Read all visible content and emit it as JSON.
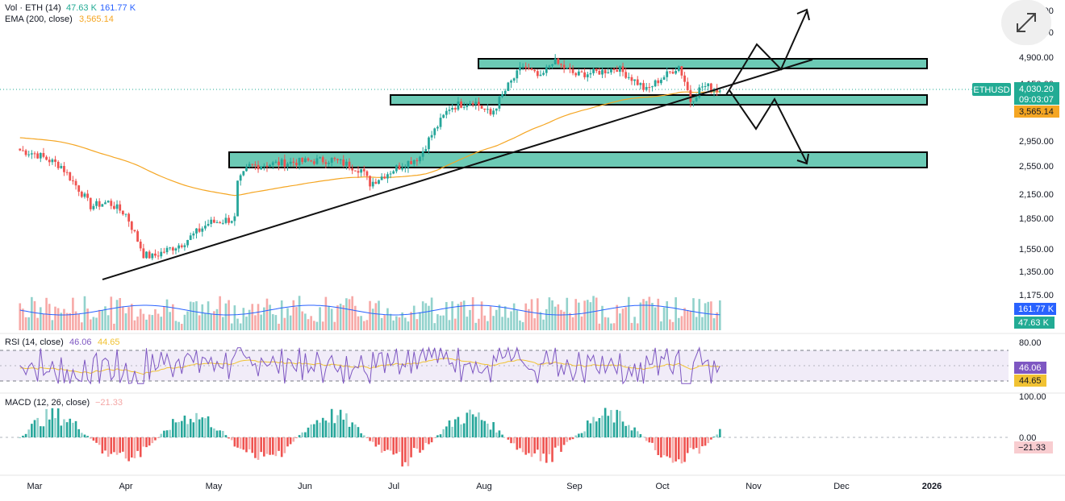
{
  "legend": {
    "vol": {
      "label": "Vol · ETH (14)",
      "v1": "47.63 K",
      "v2": "161.77 K"
    },
    "ema": {
      "label": "EMA (200, close)",
      "value": "3,565.14"
    },
    "rsi": {
      "label": "RSI (14, close)",
      "v1": "46.06",
      "v2": "44.65"
    },
    "macd": {
      "label": "MACD (12, 26, close)",
      "value": "−21.33"
    }
  },
  "price_scale": {
    "ticks": [
      "5,700.00",
      "5,300.00",
      "4,900.00",
      "4,150.00",
      "2,950.00",
      "2,550.00",
      "2,150.00",
      "1,850.00",
      "1,550.00",
      "1,350.00",
      "1,175.00"
    ],
    "symbol_badge": "ETHUSD",
    "price_badge": "4,030.20",
    "countdown": "09:03:07",
    "ema_badge": "3,565.14",
    "vol_badge_ma": "161.77 K",
    "vol_badge_vol": "47.63 K"
  },
  "rsi_scale": {
    "top": "80.00",
    "badge1": "46.06",
    "badge2": "44.65"
  },
  "macd_scale": {
    "top": "100.00",
    "zero": "0.00",
    "badge": "−21.33"
  },
  "time_axis": [
    "Mar",
    "Apr",
    "May",
    "Jun",
    "Jul",
    "Aug",
    "Sep",
    "Oct",
    "Nov",
    "Dec",
    "2026"
  ],
  "colors": {
    "up": "#26a69a",
    "down": "#ef5350",
    "ema": "#f5a623",
    "zone_fill": "#6ccab5",
    "rsi": "#7e57c2",
    "rsi_ma": "#f1c232",
    "vol_ma": "#2962ff",
    "badge_green": "#22ab94"
  },
  "icons": {
    "expand": "expand-arrows-icon"
  },
  "chart_data": {
    "type": "candlestick",
    "symbol": "ETHUSD",
    "last_price": 4030.2,
    "ema200": 3565.14,
    "close_path": [
      [
        "2025-02-24",
        2800
      ],
      [
        "2025-03-01",
        2750
      ],
      [
        "2025-03-10",
        2550
      ],
      [
        "2025-03-20",
        2000
      ],
      [
        "2025-03-26",
        2050
      ],
      [
        "2025-04-01",
        1900
      ],
      [
        "2025-04-07",
        1500
      ],
      [
        "2025-04-10",
        1480
      ],
      [
        "2025-04-20",
        1600
      ],
      [
        "2025-04-29",
        1800
      ],
      [
        "2025-05-08",
        1850
      ],
      [
        "2025-05-09",
        2300
      ],
      [
        "2025-05-13",
        2550
      ],
      [
        "2025-05-25",
        2600
      ],
      [
        "2025-06-10",
        2650
      ],
      [
        "2025-06-20",
        2500
      ],
      [
        "2025-06-23",
        2300
      ],
      [
        "2025-07-01",
        2500
      ],
      [
        "2025-07-10",
        2700
      ],
      [
        "2025-07-20",
        3650
      ],
      [
        "2025-07-28",
        3800
      ],
      [
        "2025-08-03",
        3500
      ],
      [
        "2025-08-10",
        4200
      ],
      [
        "2025-08-14",
        4650
      ],
      [
        "2025-08-20",
        4300
      ],
      [
        "2025-08-24",
        4800
      ],
      [
        "2025-09-01",
        4400
      ],
      [
        "2025-09-10",
        4500
      ],
      [
        "2025-09-15",
        4600
      ],
      [
        "2025-09-25",
        4000
      ],
      [
        "2025-10-06",
        4650
      ],
      [
        "2025-10-10",
        3800
      ],
      [
        "2025-10-14",
        4100
      ],
      [
        "2025-10-20",
        4030
      ]
    ],
    "zones": [
      [
        4700,
        4900
      ],
      [
        3800,
        3950
      ],
      [
        2500,
        2700
      ]
    ],
    "rsi": {
      "last": 46.06,
      "ma": 44.65,
      "upper": 80,
      "lower": 20
    },
    "macd": {
      "last": -21.33
    },
    "volume": {
      "last": "47.63 K",
      "ma": "161.77 K"
    }
  }
}
